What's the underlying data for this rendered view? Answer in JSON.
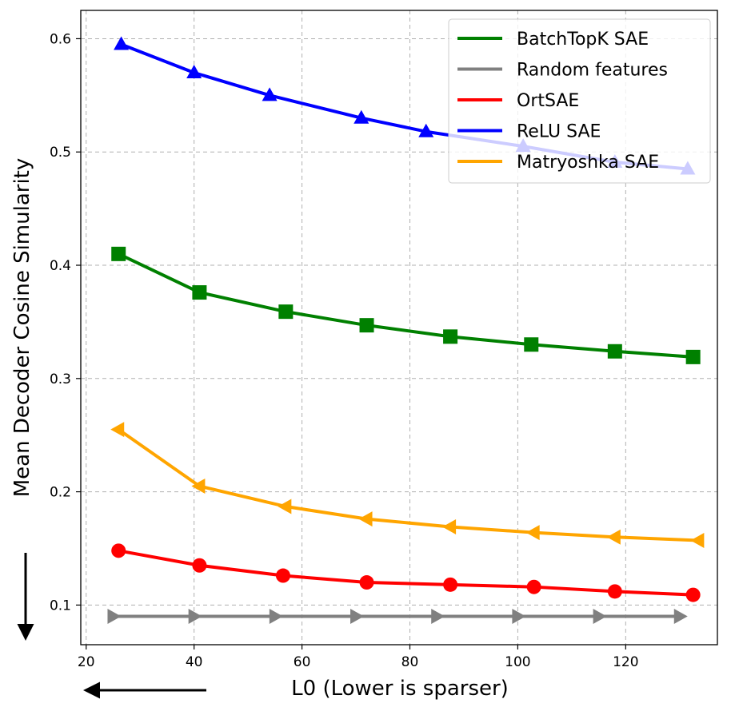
{
  "chart_data": {
    "type": "line",
    "title": "",
    "xlabel": "L0 (Lower is sparser)",
    "ylabel": "Mean Decoder Cosine Simularity",
    "xlim": [
      19,
      137
    ],
    "ylim": [
      0.065,
      0.625
    ],
    "xticks": [
      20,
      40,
      60,
      80,
      100,
      120
    ],
    "yticks": [
      0.1,
      0.2,
      0.3,
      0.4,
      0.5,
      0.6
    ],
    "xtick_labels": [
      "20",
      "40",
      "60",
      "80",
      "100",
      "120"
    ],
    "ytick_labels": [
      "0.1",
      "0.2",
      "0.3",
      "0.4",
      "0.5",
      "0.6"
    ],
    "grid": true,
    "legend_position": "top-right",
    "series": [
      {
        "name": "BatchTopK SAE",
        "color": "#008000",
        "marker": "square",
        "x": [
          26,
          41,
          57,
          72,
          87.5,
          102.5,
          118,
          132.5
        ],
        "y": [
          0.41,
          0.376,
          0.359,
          0.347,
          0.337,
          0.33,
          0.324,
          0.319
        ]
      },
      {
        "name": "Random features",
        "color": "#808080",
        "marker": "triangle-right",
        "x": [
          25,
          40,
          55,
          70,
          85,
          100,
          115,
          130
        ],
        "y": [
          0.09,
          0.09,
          0.09,
          0.09,
          0.09,
          0.09,
          0.09,
          0.09
        ]
      },
      {
        "name": "OrtSAE",
        "color": "#ff0000",
        "marker": "circle",
        "x": [
          26,
          41,
          56.5,
          72,
          87.5,
          103,
          118,
          132.5
        ],
        "y": [
          0.148,
          0.135,
          0.126,
          0.12,
          0.118,
          0.116,
          0.112,
          0.109
        ]
      },
      {
        "name": "ReLU SAE",
        "color": "#0000ff",
        "marker": "triangle-up",
        "x": [
          26.5,
          40,
          54,
          71,
          83,
          101,
          118,
          131.5
        ],
        "y": [
          0.595,
          0.57,
          0.55,
          0.53,
          0.518,
          0.505,
          0.491,
          0.485
        ]
      },
      {
        "name": "Matryoshka SAE",
        "color": "#ffa500",
        "marker": "triangle-left",
        "x": [
          26,
          41,
          57,
          72,
          87.5,
          103,
          118,
          133.5
        ],
        "y": [
          0.255,
          0.205,
          0.187,
          0.176,
          0.169,
          0.164,
          0.16,
          0.157
        ]
      }
    ]
  }
}
